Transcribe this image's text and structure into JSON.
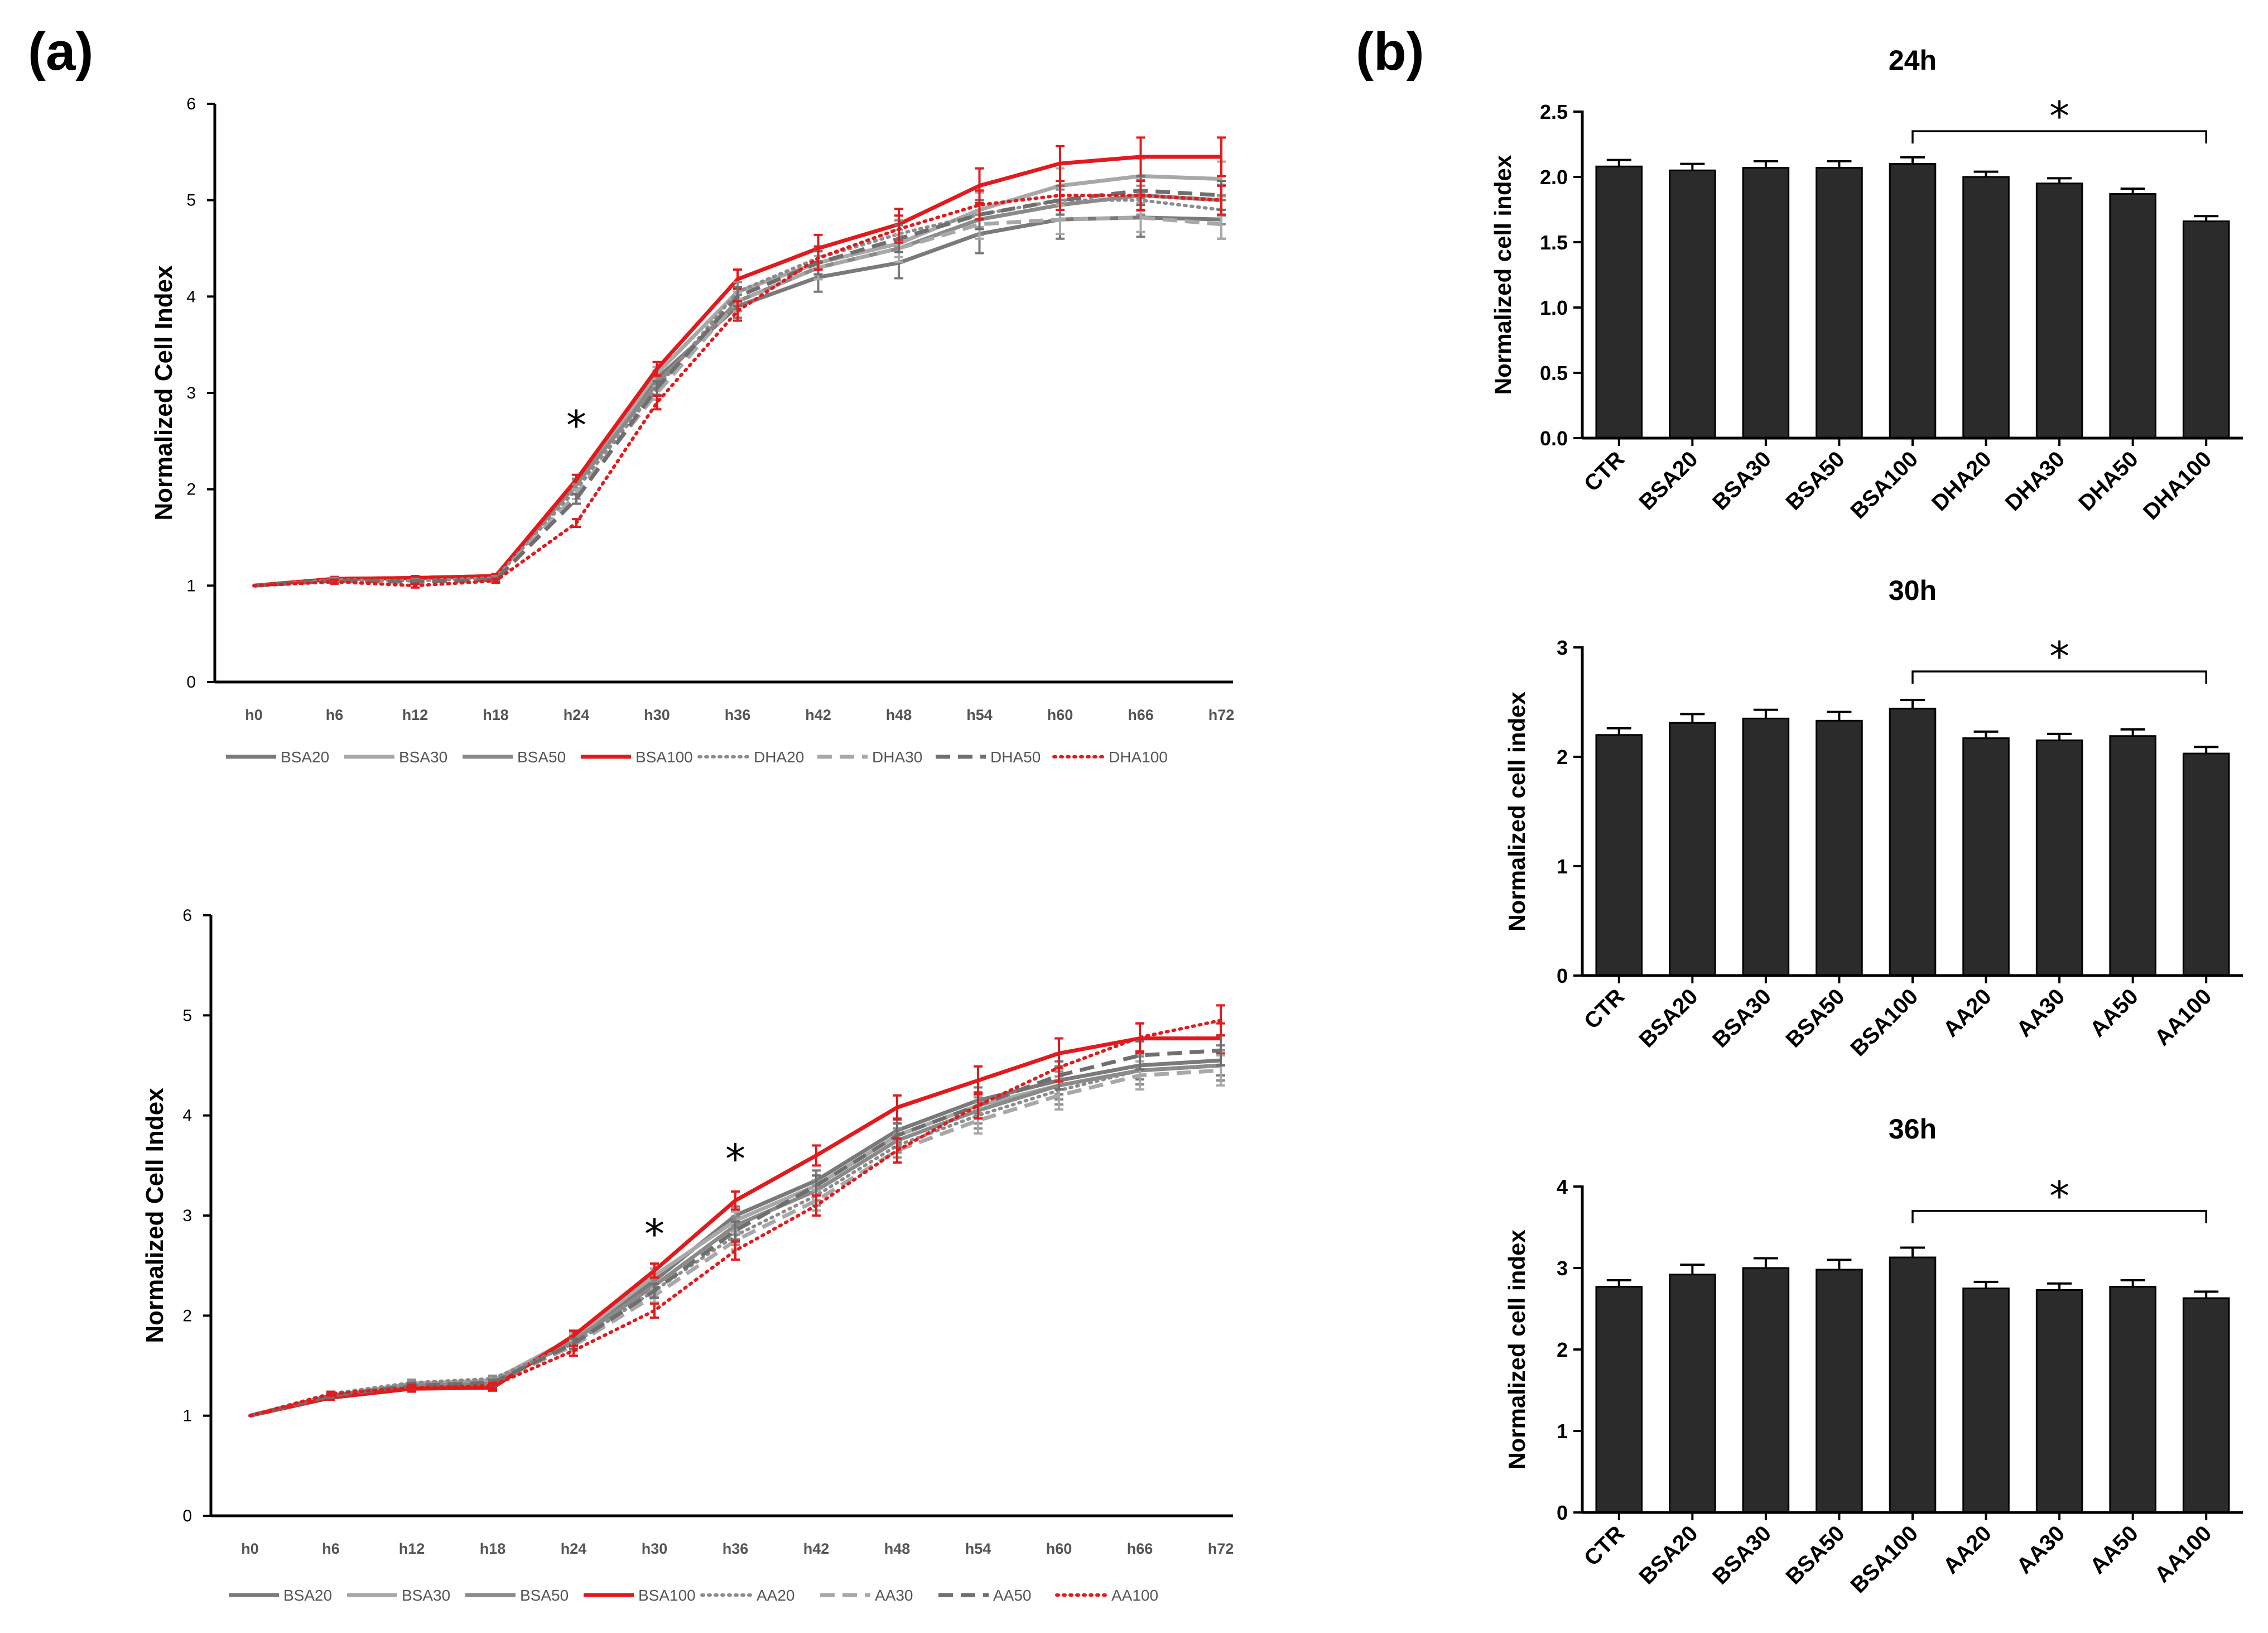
{
  "panel_labels": {
    "a": "(a)",
    "b": "(b)"
  },
  "colors": {
    "red": "#e31a1c",
    "dark_gray": "#7a7a7a",
    "light_gray": "#a8a8a8",
    "bar_fill": "#2b2b2b"
  },
  "chart_data": [
    {
      "id": "a-top",
      "type": "line",
      "xlabel": "",
      "ylabel": "Normalized Cell Index",
      "ylim": [
        0,
        6
      ],
      "yticks": [
        "0",
        "1",
        "2",
        "3",
        "4",
        "5",
        "6"
      ],
      "categories": [
        "h0",
        "h6",
        "h12",
        "h18",
        "h24",
        "h30",
        "h36",
        "h42",
        "h48",
        "h54",
        "h60",
        "h66",
        "h72"
      ],
      "annotations": [
        {
          "text": "*",
          "at": "h24",
          "y": 2.75
        }
      ],
      "series": [
        {
          "name": "BSA20",
          "style": "solid-dark",
          "values": [
            1.0,
            1.07,
            1.08,
            1.1,
            2.05,
            3.15,
            3.9,
            4.2,
            4.35,
            4.65,
            4.8,
            4.82,
            4.8
          ],
          "errors": [
            0,
            0.02,
            0.02,
            0.02,
            0.06,
            0.08,
            0.12,
            0.15,
            0.16,
            0.2,
            0.2,
            0.2,
            0.2
          ]
        },
        {
          "name": "BSA30",
          "style": "solid-light",
          "values": [
            1.0,
            1.07,
            1.08,
            1.1,
            2.05,
            3.2,
            4.05,
            4.35,
            4.55,
            4.9,
            5.15,
            5.25,
            5.22
          ],
          "errors": [
            0,
            0.02,
            0.02,
            0.02,
            0.05,
            0.07,
            0.1,
            0.12,
            0.14,
            0.18,
            0.18,
            0.18,
            0.18
          ]
        },
        {
          "name": "BSA50",
          "style": "solid-mid",
          "values": [
            1.0,
            1.07,
            1.08,
            1.1,
            2.05,
            3.1,
            3.95,
            4.3,
            4.5,
            4.8,
            4.95,
            5.05,
            5.0
          ],
          "errors": [
            0,
            0.02,
            0.02,
            0.02,
            0.05,
            0.07,
            0.1,
            0.12,
            0.14,
            0.16,
            0.16,
            0.16,
            0.16
          ]
        },
        {
          "name": "BSA100",
          "style": "solid-red",
          "values": [
            1.0,
            1.07,
            1.08,
            1.1,
            2.1,
            3.25,
            4.18,
            4.5,
            4.75,
            5.15,
            5.38,
            5.45,
            5.45
          ],
          "errors": [
            0,
            0.02,
            0.02,
            0.02,
            0.05,
            0.07,
            0.1,
            0.14,
            0.16,
            0.18,
            0.18,
            0.2,
            0.2
          ]
        },
        {
          "name": "DHA20",
          "style": "dotted-gray",
          "values": [
            1.0,
            1.06,
            1.05,
            1.08,
            2.0,
            3.05,
            4.05,
            4.4,
            4.65,
            4.85,
            5.0,
            5.0,
            4.9
          ],
          "errors": [
            0,
            0.02,
            0.02,
            0.02,
            0.05,
            0.07,
            0.1,
            0.12,
            0.14,
            0.15,
            0.15,
            0.15,
            0.15
          ]
        },
        {
          "name": "DHA30",
          "style": "dashed-light",
          "values": [
            1.0,
            1.05,
            1.04,
            1.06,
            1.95,
            3.0,
            3.95,
            4.3,
            4.5,
            4.75,
            4.8,
            4.82,
            4.75
          ],
          "errors": [
            0,
            0.02,
            0.02,
            0.02,
            0.05,
            0.07,
            0.1,
            0.12,
            0.14,
            0.15,
            0.15,
            0.15,
            0.15
          ]
        },
        {
          "name": "DHA50",
          "style": "dashed-dark",
          "values": [
            1.0,
            1.05,
            1.04,
            1.06,
            1.9,
            3.05,
            4.0,
            4.35,
            4.6,
            4.85,
            5.0,
            5.1,
            5.05
          ],
          "errors": [
            0,
            0.02,
            0.02,
            0.02,
            0.05,
            0.07,
            0.1,
            0.12,
            0.14,
            0.15,
            0.15,
            0.15,
            0.15
          ]
        },
        {
          "name": "DHA100",
          "style": "dotted-red",
          "values": [
            1.0,
            1.04,
            1.0,
            1.05,
            1.65,
            2.9,
            3.85,
            4.4,
            4.7,
            4.95,
            5.05,
            5.05,
            5.0
          ],
          "errors": [
            0,
            0.02,
            0.02,
            0.02,
            0.04,
            0.07,
            0.1,
            0.12,
            0.14,
            0.15,
            0.15,
            0.15,
            0.15
          ]
        }
      ]
    },
    {
      "id": "a-bottom",
      "type": "line",
      "xlabel": "",
      "ylabel": "Normalized Cell Index",
      "ylim": [
        0,
        6
      ],
      "yticks": [
        "0",
        "1",
        "2",
        "3",
        "4",
        "5",
        "6"
      ],
      "categories": [
        "h0",
        "h6",
        "h12",
        "h18",
        "h24",
        "h30",
        "h36",
        "h42",
        "h48",
        "h54",
        "h60",
        "h66",
        "h72"
      ],
      "annotations": [
        {
          "text": "*",
          "at": "h30",
          "y": 2.9
        },
        {
          "text": "*",
          "at": "h36",
          "y": 3.65
        }
      ],
      "series": [
        {
          "name": "BSA20",
          "style": "solid-dark",
          "values": [
            1.0,
            1.2,
            1.3,
            1.33,
            1.75,
            2.35,
            3.0,
            3.35,
            3.85,
            4.15,
            4.35,
            4.5,
            4.55
          ],
          "errors": [
            0,
            0.02,
            0.03,
            0.03,
            0.05,
            0.07,
            0.09,
            0.1,
            0.12,
            0.13,
            0.14,
            0.14,
            0.15
          ]
        },
        {
          "name": "BSA30",
          "style": "solid-light",
          "values": [
            1.0,
            1.2,
            1.32,
            1.35,
            1.78,
            2.4,
            2.95,
            3.3,
            3.8,
            4.1,
            4.3,
            4.45,
            4.5
          ],
          "errors": [
            0,
            0.02,
            0.03,
            0.03,
            0.05,
            0.07,
            0.09,
            0.1,
            0.12,
            0.13,
            0.14,
            0.14,
            0.15
          ]
        },
        {
          "name": "BSA50",
          "style": "solid-mid",
          "values": [
            1.0,
            1.2,
            1.3,
            1.32,
            1.75,
            2.3,
            2.9,
            3.25,
            3.75,
            4.05,
            4.3,
            4.45,
            4.5
          ],
          "errors": [
            0,
            0.02,
            0.03,
            0.03,
            0.05,
            0.07,
            0.09,
            0.1,
            0.12,
            0.13,
            0.14,
            0.14,
            0.15
          ]
        },
        {
          "name": "BSA100",
          "style": "solid-red",
          "values": [
            1.0,
            1.18,
            1.27,
            1.28,
            1.8,
            2.45,
            3.15,
            3.6,
            4.08,
            4.35,
            4.62,
            4.77,
            4.77
          ],
          "errors": [
            0,
            0.02,
            0.03,
            0.03,
            0.05,
            0.07,
            0.09,
            0.1,
            0.12,
            0.14,
            0.15,
            0.15,
            0.15
          ]
        },
        {
          "name": "AA20",
          "style": "dotted-gray",
          "values": [
            1.0,
            1.22,
            1.33,
            1.37,
            1.72,
            2.25,
            2.8,
            3.2,
            3.7,
            4.0,
            4.25,
            4.45,
            4.5
          ],
          "errors": [
            0,
            0.02,
            0.03,
            0.03,
            0.05,
            0.07,
            0.09,
            0.1,
            0.12,
            0.13,
            0.14,
            0.14,
            0.15
          ]
        },
        {
          "name": "AA30",
          "style": "dashed-light",
          "values": [
            1.0,
            1.2,
            1.3,
            1.33,
            1.7,
            2.2,
            2.75,
            3.15,
            3.65,
            3.95,
            4.2,
            4.4,
            4.45
          ],
          "errors": [
            0,
            0.02,
            0.03,
            0.03,
            0.05,
            0.07,
            0.09,
            0.1,
            0.12,
            0.13,
            0.14,
            0.14,
            0.15
          ]
        },
        {
          "name": "AA50",
          "style": "dashed-dark",
          "values": [
            1.0,
            1.2,
            1.3,
            1.33,
            1.72,
            2.25,
            2.85,
            3.3,
            3.8,
            4.1,
            4.4,
            4.6,
            4.65
          ],
          "errors": [
            0,
            0.02,
            0.03,
            0.03,
            0.05,
            0.07,
            0.09,
            0.1,
            0.12,
            0.13,
            0.14,
            0.14,
            0.15
          ]
        },
        {
          "name": "AA100",
          "style": "dotted-red",
          "values": [
            1.0,
            1.22,
            1.28,
            1.3,
            1.65,
            2.05,
            2.65,
            3.1,
            3.65,
            4.1,
            4.48,
            4.78,
            4.95
          ],
          "errors": [
            0,
            0.02,
            0.03,
            0.03,
            0.05,
            0.07,
            0.09,
            0.1,
            0.12,
            0.13,
            0.14,
            0.14,
            0.15
          ]
        }
      ]
    },
    {
      "id": "b-24h",
      "type": "bar",
      "title": "24h",
      "ylabel": "Normalized cell index",
      "ylim": [
        0,
        2.5
      ],
      "yticks": [
        "0.0",
        "0.5",
        "1.0",
        "1.5",
        "2.0",
        "2.5"
      ],
      "categories": [
        "CTR",
        "BSA20",
        "BSA30",
        "BSA50",
        "BSA100",
        "DHA20",
        "DHA30",
        "DHA50",
        "DHA100"
      ],
      "values": [
        2.08,
        2.05,
        2.07,
        2.07,
        2.1,
        2.0,
        1.95,
        1.87,
        1.66
      ],
      "errors": [
        0.05,
        0.05,
        0.05,
        0.05,
        0.05,
        0.04,
        0.04,
        0.04,
        0.04
      ],
      "significance": {
        "text": "*",
        "from": "BSA100",
        "to": "DHA100",
        "y": 2.35
      }
    },
    {
      "id": "b-30h",
      "type": "bar",
      "title": "30h",
      "ylabel": "Normalized cell index",
      "ylim": [
        0,
        3
      ],
      "yticks": [
        "0",
        "1",
        "2",
        "3"
      ],
      "categories": [
        "CTR",
        "BSA20",
        "BSA30",
        "BSA50",
        "BSA100",
        "AA20",
        "AA30",
        "AA50",
        "AA100"
      ],
      "values": [
        2.2,
        2.31,
        2.35,
        2.33,
        2.44,
        2.17,
        2.15,
        2.19,
        2.03
      ],
      "errors": [
        0.06,
        0.08,
        0.08,
        0.08,
        0.08,
        0.06,
        0.06,
        0.06,
        0.06
      ],
      "significance": {
        "text": "*",
        "from": "BSA100",
        "to": "AA100",
        "y": 2.78
      }
    },
    {
      "id": "b-36h",
      "type": "bar",
      "title": "36h",
      "ylabel": "Normalized cell index",
      "ylim": [
        0,
        4
      ],
      "yticks": [
        "0",
        "1",
        "2",
        "3",
        "4"
      ],
      "categories": [
        "CTR",
        "BSA20",
        "BSA30",
        "BSA50",
        "BSA100",
        "AA20",
        "AA30",
        "AA50",
        "AA100"
      ],
      "values": [
        2.77,
        2.92,
        3.0,
        2.98,
        3.13,
        2.75,
        2.73,
        2.77,
        2.63
      ],
      "errors": [
        0.08,
        0.12,
        0.12,
        0.12,
        0.12,
        0.08,
        0.08,
        0.08,
        0.08
      ],
      "significance": {
        "text": "*",
        "from": "BSA100",
        "to": "AA100",
        "y": 3.7
      }
    }
  ]
}
